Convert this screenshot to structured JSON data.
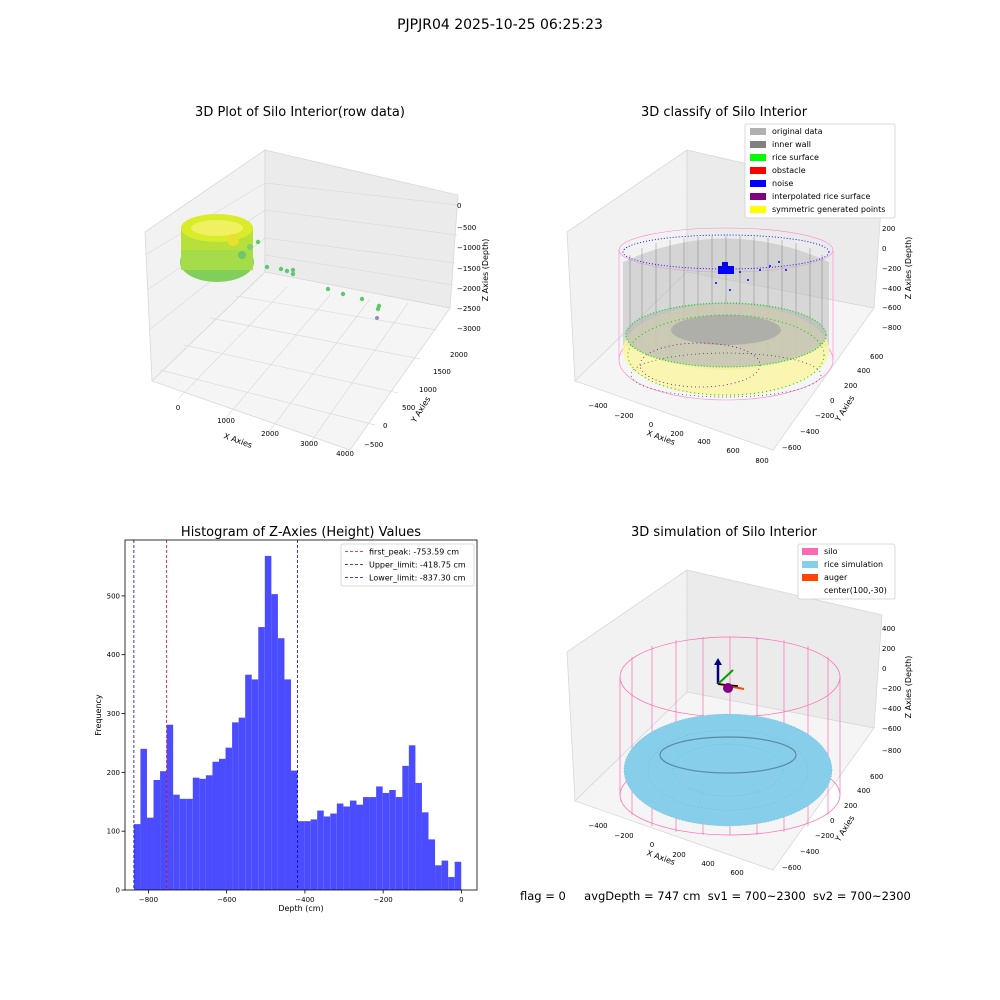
{
  "figure": {
    "suptitle": "PJPJR04 2025-10-25 06:25:23",
    "footer": {
      "flag": "flag = 0",
      "avg_depth": "avgDepth = 747 cm",
      "sv1": "sv1 = 700~2300",
      "sv2": "sv2 = 700~2300"
    }
  },
  "panels": {
    "raw": {
      "title": "3D Plot of Silo Interior(row data)",
      "xlabel": "X Axies",
      "ylabel": "Y Axies",
      "zlabel": "Z Axies (Depth)",
      "xticks": [
        "0",
        "1000",
        "2000",
        "3000",
        "4000"
      ],
      "yticks": [
        "−500",
        "0",
        "500",
        "1000",
        "1500",
        "2000"
      ],
      "zticks": [
        "0",
        "−500",
        "−1000",
        "−1500",
        "−2000",
        "−2500",
        "−3000"
      ]
    },
    "classify": {
      "title": "3D classify of Silo Interior",
      "xlabel": "X Axies",
      "ylabel": "Y Axies",
      "zlabel": "Z Axies (Depth)",
      "xticks": [
        "−400",
        "−200",
        "0",
        "200",
        "400",
        "600",
        "800"
      ],
      "yticks": [
        "−600",
        "−400",
        "−200",
        "0",
        "200",
        "400",
        "600"
      ],
      "zticks": [
        "200",
        "0",
        "−200",
        "−400",
        "−600",
        "−800"
      ],
      "legend": [
        {
          "label": "original data",
          "color": "#b0b0b0"
        },
        {
          "label": "inner wall",
          "color": "#808080"
        },
        {
          "label": "rice surface",
          "color": "#00ff00"
        },
        {
          "label": "obstacle",
          "color": "#ff0000"
        },
        {
          "label": "noise",
          "color": "#0000ff"
        },
        {
          "label": "interpolated rice surface",
          "color": "#800080"
        },
        {
          "label": "symmetric generated points",
          "color": "#ffff00"
        }
      ]
    },
    "simulation": {
      "title": "3D simulation of Silo Interior",
      "xlabel": "X Axies",
      "ylabel": "Y Axies",
      "zlabel": "Z Axies (Depth)",
      "xticks": [
        "−400",
        "−200",
        "0",
        "200",
        "400",
        "600"
      ],
      "yticks": [
        "−600",
        "−400",
        "−200",
        "0",
        "200",
        "400",
        "600"
      ],
      "zticks": [
        "400",
        "200",
        "0",
        "−200",
        "−400",
        "−600",
        "−800"
      ],
      "legend": [
        {
          "label": "silo",
          "color": "#ff69b4"
        },
        {
          "label": "rice simulation",
          "color": "#87ceeb"
        },
        {
          "label": "auger",
          "color": "#ff4500"
        },
        {
          "label": "center(100,-30)",
          "color": "none"
        }
      ]
    }
  },
  "chart_data": [
    {
      "type": "bar",
      "title": "Histogram of Z-Axies (Height) Values",
      "xlabel": "Depth (cm)",
      "ylabel": "Frequency",
      "xlim": [
        -860,
        40
      ],
      "ylim": [
        0,
        595
      ],
      "bin_start": -837.3,
      "bin_width": 16.74,
      "values": [
        112,
        240,
        123,
        187,
        202,
        281,
        162,
        155,
        155,
        191,
        189,
        195,
        218,
        223,
        242,
        285,
        293,
        366,
        358,
        447,
        568,
        503,
        428,
        358,
        203,
        117,
        117,
        120,
        135,
        125,
        130,
        147,
        142,
        152,
        145,
        158,
        158,
        176,
        165,
        170,
        158,
        211,
        246,
        182,
        132,
        86,
        42,
        50,
        22,
        48
      ],
      "bar_color": "#4c4cff",
      "xticks": [
        -800,
        -600,
        -400,
        -200,
        0
      ],
      "xtick_labels": [
        "−800",
        "−600",
        "−400",
        "−200",
        "0"
      ],
      "yticks": [
        0,
        100,
        200,
        300,
        400,
        500
      ],
      "lines": [
        {
          "label": "first_peak: -753.59 cm",
          "value": -753.59,
          "color": "#ff0000"
        },
        {
          "label": "Upper_limit: -418.75 cm",
          "value": -418.75,
          "color": "#0000cc"
        },
        {
          "label": "Lower_limit: -837.30 cm",
          "value": -837.3,
          "color": "#0000cc"
        }
      ],
      "legend_position": "upper right",
      "grid": false
    }
  ]
}
